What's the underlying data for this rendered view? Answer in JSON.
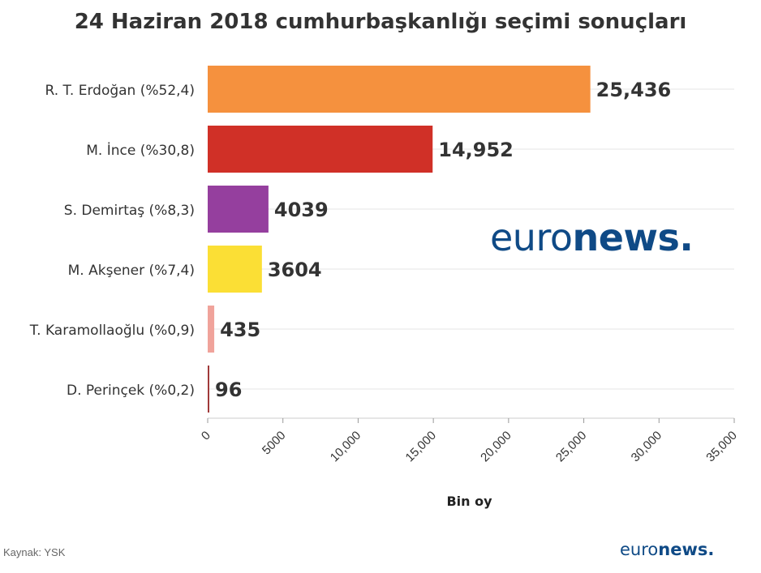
{
  "chart_data": {
    "type": "bar",
    "orientation": "horizontal",
    "title": "24 Haziran 2018 cumhurbaşkanlığı seçimi sonuçları",
    "xlabel": "Bin oy",
    "ylabel": "",
    "xlim": [
      0,
      35000
    ],
    "grid": true,
    "categories": [
      "R. T. Erdoğan (%52,4)",
      "M. İnce (%30,8)",
      "S. Demirtaş (%8,3)",
      "M. Akşener (%7,4)",
      "T. Karamollaoğlu (%0,9)",
      "D. Perinçek (%0,2)"
    ],
    "values": [
      25436,
      14952,
      4039,
      3604,
      435,
      96
    ],
    "value_labels": [
      "25,436",
      "14,952",
      "4039",
      "3604",
      "435",
      "96"
    ],
    "colors": [
      "#f5913e",
      "#d03027",
      "#953f9e",
      "#fbdf35",
      "#f0a39b",
      "#a03a3a"
    ],
    "x_ticks": [
      "0",
      "5000",
      "10,000",
      "15,000",
      "20,000",
      "25,000",
      "30,000",
      "35,000"
    ],
    "x_tick_values": [
      0,
      5000,
      10000,
      15000,
      20000,
      25000,
      30000,
      35000
    ]
  },
  "source": "Kaynak: YSK",
  "logo": {
    "part1": "euro",
    "part2": "news",
    "dot": "."
  },
  "logo_color": "#0f4a86"
}
